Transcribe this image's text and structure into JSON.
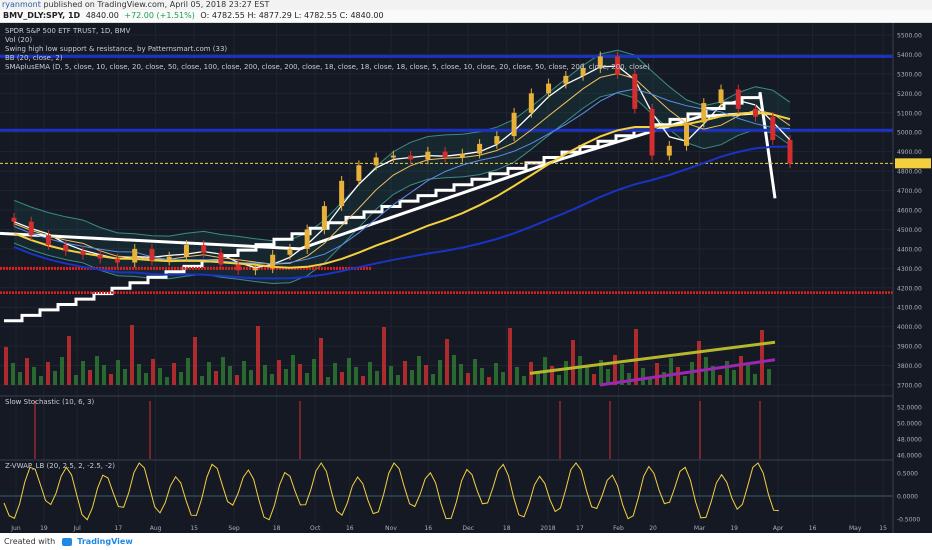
{
  "header": {
    "user": "ryanmont",
    "published_text": "published on TradingView.com, April 05, 2018 23:27 EST",
    "symbol": "BMV_DLY:SPY, 1D",
    "price": "4840.00",
    "change": "+72.00 (+1.51%)",
    "ohlc": "O: 4782.55  H: 4877.29  L: 4782.55  C: 4840.00"
  },
  "legend": {
    "title": "SPDR S&P 500 ETF TRUST, 1D, BMV",
    "vol": "Vol (20)",
    "swing": "Swing high low support & resistance, by Patternsmart.com (33)",
    "bb": "BB (20, close, 2)",
    "sma": "SMAplusEMA (D, 5, close, 10, close, 20, close, 50, close, 100, close, 200, close, 200, close, 18, close, 18, close, 18, close, 5, close, 10, close, 20, close, 50, close, 200, close, 200, close)",
    "stoch": "Slow Stochastic (10, 6, 3)",
    "zvwap": "Z-VWAP_LB (20, 2.5, 2, -2.5, -2)"
  },
  "footer": {
    "created_with": "Created with",
    "brand": "TradingView"
  },
  "colors": {
    "bg": "#151924",
    "up": "#26a69a",
    "down": "#d32f2f",
    "yellow": "#f4d03f",
    "blue": "#1a33c4",
    "red": "#e02020",
    "white": "#ffffff",
    "purple": "#9c27b0",
    "olive": "#b5b82c"
  },
  "chart_data": [
    {
      "type": "candlestick",
      "title": "SPDR S&P 500 ETF TRUST, 1D, BMV",
      "x_ticks": [
        "Jun",
        "19",
        "Jul",
        "17",
        "Aug",
        "15",
        "Sep",
        "18",
        "Oct",
        "16",
        "Nov",
        "16",
        "Dec",
        "18",
        "2018",
        "17",
        "Feb",
        "20",
        "Mar",
        "19",
        "Apr",
        "16",
        "May",
        "15"
      ],
      "y_ticks": [
        5500,
        5400,
        5300,
        5200,
        5100,
        5000,
        4900,
        4800,
        4700,
        4600,
        4500,
        4400,
        4300,
        4200,
        4100,
        4000,
        3900,
        3800,
        3700
      ],
      "ylim": [
        3680,
        5540
      ],
      "last_price": 4840.0,
      "key_levels": [
        {
          "name": "resistance",
          "value": 5390
        },
        {
          "name": "resistance",
          "value": 5010
        },
        {
          "name": "support",
          "value": 4300
        },
        {
          "name": "support",
          "value": 4175
        }
      ],
      "closes_approx": [
        4540,
        4470,
        4420,
        4390,
        4370,
        4350,
        4330,
        4400,
        4340,
        4360,
        4420,
        4380,
        4320,
        4290,
        4300,
        4370,
        4400,
        4500,
        4620,
        4750,
        4830,
        4870,
        4880,
        4860,
        4900,
        4870,
        4890,
        4940,
        4980,
        5100,
        5200,
        5250,
        5290,
        5330,
        5390,
        5300,
        5120,
        4880,
        4930,
        5050,
        5150,
        5220,
        5120,
        5080,
        4960,
        4840
      ]
    },
    {
      "type": "line",
      "title": "Slow Stochastic (10, 6, 3)",
      "y_ticks": [
        52.0,
        50.0,
        48.0,
        46.0
      ]
    },
    {
      "type": "line",
      "title": "Z-VWAP_LB (20, 2.5, 2, -2.5, -2)",
      "y_ticks": [
        0.5,
        0.0,
        -0.5
      ]
    }
  ],
  "axis_labels": {
    "p5500": "5500.00",
    "p5400": "5400.00",
    "p5300": "5300.00",
    "p5200": "5200.00",
    "p5100": "5100.00",
    "p5000": "5000.00",
    "p4900": "4900.00",
    "p4840": "4840.00",
    "p4800": "4800.00",
    "p4700": "4700.00",
    "p4600": "4600.00",
    "p4500": "4500.00",
    "p4400": "4400.00",
    "p4300": "4300.00",
    "p4200": "4200.00",
    "p4100": "4100.00",
    "p4000": "4000.00",
    "p3900": "3900.00",
    "p3800": "3800.00",
    "p3700": "3700.00",
    "s52": "52.0000",
    "s50": "50.0000",
    "s48": "48.0000",
    "s46": "46.0000",
    "z05": "0.5000",
    "z0": "0.0000",
    "zm05": "-0.5000"
  }
}
